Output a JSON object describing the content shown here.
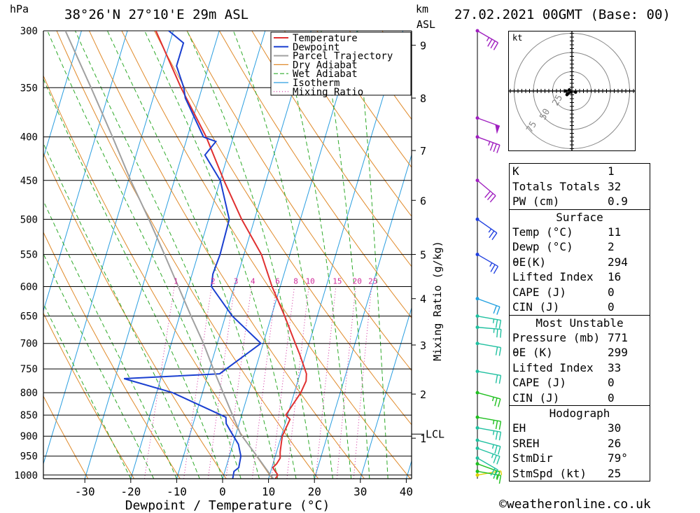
{
  "header": {
    "pressure_unit": "hPa",
    "location": "38°26'N  27°10'E  29m  ASL",
    "km_label": "km",
    "asl_label": "ASL",
    "datetime": "27.02.2021  00GMT  (Base: 00)"
  },
  "chart_data": {
    "type": "line",
    "chart_kind": "skew-T log-P sounding",
    "xlabel": "Dewpoint / Temperature (°C)",
    "ylabel_left": "hPa",
    "ylabel_right": "Mixing Ratio (g/kg)",
    "x_ticks": [
      -30,
      -20,
      -10,
      0,
      10,
      20,
      30,
      40
    ],
    "x_tick_labels": [
      "-30",
      "-20",
      "-10",
      "0",
      "10",
      "20",
      "30",
      "40"
    ],
    "pressure_ticks": [
      300,
      350,
      400,
      450,
      500,
      550,
      600,
      650,
      700,
      750,
      800,
      850,
      900,
      950,
      1000
    ],
    "km_ticks": [
      {
        "label": "1",
        "pressure": 905
      },
      {
        "label": "2",
        "pressure": 803
      },
      {
        "label": "3",
        "pressure": 703
      },
      {
        "label": "4",
        "pressure": 620
      },
      {
        "label": "5",
        "pressure": 550
      },
      {
        "label": "6",
        "pressure": 475
      },
      {
        "label": "7",
        "pressure": 415
      },
      {
        "label": "8",
        "pressure": 360
      },
      {
        "label": "9",
        "pressure": 312
      }
    ],
    "lcl": {
      "label": "LCL",
      "pressure": 895
    },
    "mixing_ratio_labels": [
      "1",
      "2",
      "3",
      "4",
      "6",
      "8",
      "10",
      "15",
      "20",
      "25"
    ],
    "legend": [
      "Temperature",
      "Dewpoint",
      "Parcel Trajectory",
      "Dry Adiabat",
      "Wet Adiabat",
      "Isotherm",
      "Mixing Ratio"
    ],
    "colors": {
      "temperature": "#e03030",
      "dewpoint": "#1a3fd0",
      "parcel": "#a0a0a0",
      "dry_adiabat": "#e08a2a",
      "wet_adiabat": "#2faa2a",
      "isotherm": "#2a9ee0",
      "mixing_ratio": "#d02a9a"
    },
    "series": [
      {
        "name": "Temperature",
        "points": [
          [
            1010,
            11.5
          ],
          [
            1000,
            11.8
          ],
          [
            990,
            11
          ],
          [
            980,
            10.2
          ],
          [
            970,
            10.8
          ],
          [
            955,
            11.2
          ],
          [
            940,
            10.8
          ],
          [
            900,
            10.2
          ],
          [
            860,
            10.8
          ],
          [
            850,
            9.6
          ],
          [
            800,
            11.4
          ],
          [
            775,
            11.8
          ],
          [
            760,
            11.4
          ],
          [
            720,
            8.6
          ],
          [
            700,
            7.0
          ],
          [
            650,
            2.9
          ],
          [
            600,
            -1.8
          ],
          [
            550,
            -6.2
          ],
          [
            500,
            -12.8
          ],
          [
            450,
            -19.2
          ],
          [
            400,
            -25.9
          ],
          [
            350,
            -34.6
          ],
          [
            300,
            -43.8
          ]
        ]
      },
      {
        "name": "Dewpoint",
        "points": [
          [
            1010,
            2.2
          ],
          [
            990,
            2.0
          ],
          [
            980,
            2.8
          ],
          [
            950,
            2.5
          ],
          [
            920,
            1.2
          ],
          [
            890,
            -1.2
          ],
          [
            870,
            -2.8
          ],
          [
            855,
            -3.3
          ],
          [
            800,
            -16.5
          ],
          [
            770,
            -28.0
          ],
          [
            760,
            -7.5
          ],
          [
            700,
            -0.5
          ],
          [
            650,
            -8.5
          ],
          [
            600,
            -15.0
          ],
          [
            580,
            -15.5
          ],
          [
            550,
            -15.2
          ],
          [
            500,
            -15.5
          ],
          [
            450,
            -20.0
          ],
          [
            420,
            -25.0
          ],
          [
            405,
            -23.5
          ],
          [
            400,
            -26.5
          ],
          [
            360,
            -33.0
          ],
          [
            350,
            -34.0
          ],
          [
            330,
            -37.0
          ],
          [
            310,
            -37.0
          ],
          [
            300,
            -41.0
          ]
        ]
      },
      {
        "name": "Parcel Trajectory",
        "points": [
          [
            1010,
            11.0
          ],
          [
            950,
            6.0
          ],
          [
            895,
            1.0
          ],
          [
            850,
            -2.0
          ],
          [
            800,
            -5.5
          ],
          [
            750,
            -9.2
          ],
          [
            700,
            -13.0
          ],
          [
            650,
            -17.5
          ],
          [
            600,
            -22.2
          ],
          [
            550,
            -27.3
          ],
          [
            500,
            -33.0
          ],
          [
            450,
            -39.5
          ],
          [
            400,
            -46.3
          ],
          [
            350,
            -54.2
          ],
          [
            300,
            -63.5
          ]
        ]
      }
    ],
    "wind_barbs": [
      {
        "pressure": 1000,
        "direction": 80,
        "speed_kt": 5,
        "color": "#e0d000"
      },
      {
        "pressure": 990,
        "direction": 100,
        "speed_kt": 15,
        "color": "#20c020"
      },
      {
        "pressure": 970,
        "direction": 110,
        "speed_kt": 20,
        "color": "#20c020"
      },
      {
        "pressure": 955,
        "direction": 120,
        "speed_kt": 20,
        "color": "#20c0a0"
      },
      {
        "pressure": 930,
        "direction": 110,
        "speed_kt": 25,
        "color": "#20c0a0"
      },
      {
        "pressure": 910,
        "direction": 105,
        "speed_kt": 25,
        "color": "#20c0a0"
      },
      {
        "pressure": 880,
        "direction": 100,
        "speed_kt": 25,
        "color": "#20c0a0"
      },
      {
        "pressure": 855,
        "direction": 100,
        "speed_kt": 25,
        "color": "#20c020"
      },
      {
        "pressure": 800,
        "direction": 105,
        "speed_kt": 25,
        "color": "#20c020"
      },
      {
        "pressure": 755,
        "direction": 100,
        "speed_kt": 20,
        "color": "#20c0a0"
      },
      {
        "pressure": 700,
        "direction": 100,
        "speed_kt": 20,
        "color": "#20c0a0"
      },
      {
        "pressure": 670,
        "direction": 95,
        "speed_kt": 25,
        "color": "#20c0a0"
      },
      {
        "pressure": 650,
        "direction": 100,
        "speed_kt": 25,
        "color": "#20c0a0"
      },
      {
        "pressure": 620,
        "direction": 110,
        "speed_kt": 20,
        "color": "#20a0e0"
      },
      {
        "pressure": 550,
        "direction": 120,
        "speed_kt": 25,
        "color": "#2040e0"
      },
      {
        "pressure": 500,
        "direction": 125,
        "speed_kt": 25,
        "color": "#2040e0"
      },
      {
        "pressure": 450,
        "direction": 130,
        "speed_kt": 30,
        "color": "#a020c0"
      },
      {
        "pressure": 400,
        "direction": 110,
        "speed_kt": 35,
        "color": "#a020c0"
      },
      {
        "pressure": 380,
        "direction": 110,
        "speed_kt": 50,
        "color": "#a020c0"
      },
      {
        "pressure": 300,
        "direction": 120,
        "speed_kt": 35,
        "color": "#a020c0"
      }
    ],
    "hodograph": {
      "unit_label": "kt",
      "ring_labels": [
        "25",
        "50",
        "75"
      ],
      "points_kt": [
        [
          -2,
          1
        ],
        [
          -5,
          0
        ],
        [
          -4,
          -3
        ],
        [
          -3,
          -2
        ],
        [
          -1,
          -1
        ],
        [
          3,
          -1
        ]
      ]
    }
  },
  "indices": {
    "top": [
      {
        "label": "K",
        "value": "1"
      },
      {
        "label": "Totals Totals",
        "value": "32"
      },
      {
        "label": "PW (cm)",
        "value": "0.9"
      }
    ],
    "surface": {
      "title": "Surface",
      "rows": [
        {
          "label": "Temp (°C)",
          "value": "11"
        },
        {
          "label": "Dewp (°C)",
          "value": "2"
        },
        {
          "label": "θE(K)",
          "value": "294"
        },
        {
          "label": "Lifted Index",
          "value": "16"
        },
        {
          "label": "CAPE (J)",
          "value": "0"
        },
        {
          "label": "CIN (J)",
          "value": "0"
        }
      ]
    },
    "most_unstable": {
      "title": "Most Unstable",
      "rows": [
        {
          "label": "Pressure (mb)",
          "value": "771"
        },
        {
          "label": "θE (K)",
          "value": "299"
        },
        {
          "label": "Lifted Index",
          "value": "33"
        },
        {
          "label": "CAPE (J)",
          "value": "0"
        },
        {
          "label": "CIN (J)",
          "value": "0"
        }
      ]
    },
    "hodograph": {
      "title": "Hodograph",
      "rows": [
        {
          "label": "EH",
          "value": "30"
        },
        {
          "label": "SREH",
          "value": "26"
        },
        {
          "label": "StmDir",
          "value": "79°"
        },
        {
          "label": "StmSpd (kt)",
          "value": "25"
        }
      ]
    }
  },
  "credit": "©weatheronline.co.uk"
}
